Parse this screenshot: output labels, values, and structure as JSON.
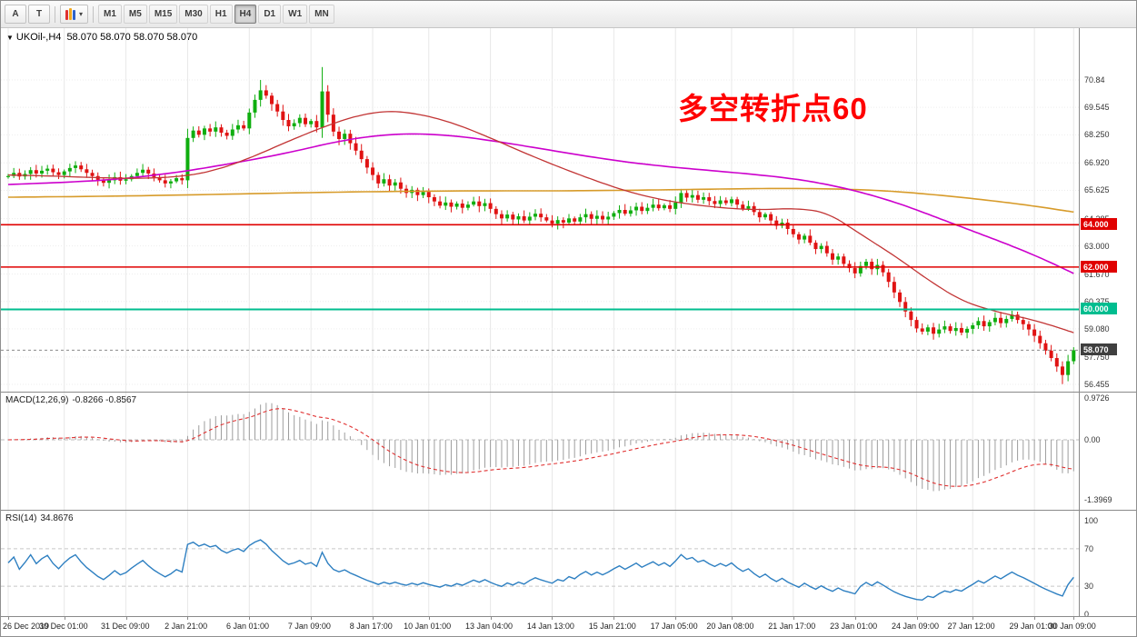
{
  "icons": {
    "collapse": "▼",
    "chevron_down": "▾"
  },
  "toolbar": {
    "tools": [
      {
        "label": "A"
      },
      {
        "label": "T"
      }
    ],
    "timeframes": [
      "M1",
      "M5",
      "M15",
      "M30",
      "H1",
      "H4",
      "D1",
      "W1",
      "MN"
    ],
    "active_timeframe": "H4"
  },
  "chart": {
    "title_symbol": "UKOil-,H4",
    "ohlc_display": "58.070 58.070 58.070 58.070",
    "annotation": {
      "text": "多空转折点60",
      "color": "#ff0000"
    },
    "levels": [
      {
        "label": "64.000",
        "price": 64.0,
        "color": "#e00000",
        "width": 1.6
      },
      {
        "label": "62.000",
        "price": 62.0,
        "color": "#e00000",
        "width": 1.6
      },
      {
        "label": "60.000",
        "price": 60.0,
        "color": "#00bd8f",
        "width": 2
      }
    ],
    "current_price": {
      "label": "58.070",
      "value": 58.07,
      "badge_color": "#3f3f3f"
    },
    "y_axis_labels": [
      {
        "text": "70.84",
        "p": 70.84
      },
      {
        "text": "69.545",
        "p": 69.545
      },
      {
        "text": "68.250",
        "p": 68.25
      },
      {
        "text": "66.920",
        "p": 66.92
      },
      {
        "text": "65.625",
        "p": 65.625
      },
      {
        "text": "64.285",
        "p": 64.285
      },
      {
        "text": "63.000",
        "p": 63.0
      },
      {
        "text": "61.670",
        "p": 61.67
      },
      {
        "text": "60.375",
        "p": 60.375
      },
      {
        "text": "59.080",
        "p": 59.08
      },
      {
        "text": "57.750",
        "p": 57.75
      },
      {
        "text": "56.455",
        "p": 56.455
      }
    ],
    "time_axis_labels": [
      {
        "text": "26 Dec 2019",
        "i": 0
      },
      {
        "text": "30 Dec 01:00",
        "i": 10
      },
      {
        "text": "31 Dec 09:00",
        "i": 21
      },
      {
        "text": "2 Jan 21:00",
        "i": 32
      },
      {
        "text": "6 Jan 01:00",
        "i": 43
      },
      {
        "text": "7 Jan 09:00",
        "i": 54
      },
      {
        "text": "8 Jan 17:00",
        "i": 65
      },
      {
        "text": "10 Jan 01:00",
        "i": 75
      },
      {
        "text": "13 Jan 04:00",
        "i": 86
      },
      {
        "text": "14 Jan 13:00",
        "i": 97
      },
      {
        "text": "15 Jan 21:00",
        "i": 108
      },
      {
        "text": "17 Jan 05:00",
        "i": 119
      },
      {
        "text": "20 Jan 08:00",
        "i": 129
      },
      {
        "text": "21 Jan 17:00",
        "i": 140
      },
      {
        "text": "23 Jan 01:00",
        "i": 151
      },
      {
        "text": "24 Jan 09:00",
        "i": 162
      },
      {
        "text": "27 Jan 12:00",
        "i": 172
      },
      {
        "text": "29 Jan 01:00",
        "i": 183
      },
      {
        "text": "30 Jan 09:00",
        "i": 190
      }
    ]
  },
  "indicators": {
    "macd": {
      "label": "MACD(12,26,9)",
      "values": "-0.8266 -0.8567",
      "axis": [
        {
          "text": "0.9726",
          "v": 0.9726
        },
        {
          "text": "0.00",
          "v": 0
        },
        {
          "text": "-1.3969",
          "v": -1.3969
        }
      ]
    },
    "rsi": {
      "label": "RSI(14)",
      "value": "34.8676",
      "axis": [
        {
          "text": "100",
          "v": 100
        },
        {
          "text": "70",
          "v": 70
        },
        {
          "text": "30",
          "v": 30
        },
        {
          "text": "0",
          "v": 0
        }
      ],
      "level_lines": [
        70,
        30
      ]
    }
  },
  "chart_data": {
    "type": "candlestick",
    "symbol": "UKOil-",
    "timeframe": "H4",
    "ylim": [
      56.1,
      73.3
    ],
    "macd_ylim": [
      -1.63,
      1.1
    ],
    "rsi_ylim": [
      0,
      100
    ],
    "closes": [
      66.3,
      66.45,
      66.28,
      66.4,
      66.58,
      66.42,
      66.55,
      66.65,
      66.48,
      66.35,
      66.52,
      66.68,
      66.8,
      66.62,
      66.45,
      66.3,
      66.12,
      65.98,
      66.1,
      66.25,
      66.08,
      66.15,
      66.3,
      66.45,
      66.6,
      66.42,
      66.25,
      66.1,
      65.95,
      66.05,
      66.2,
      66.1,
      68.1,
      68.45,
      68.25,
      68.55,
      68.4,
      68.6,
      68.35,
      68.2,
      68.5,
      68.7,
      68.55,
      69.3,
      69.9,
      70.35,
      70.1,
      69.7,
      69.35,
      68.95,
      68.65,
      68.8,
      69.05,
      68.75,
      68.9,
      68.6,
      70.3,
      69.2,
      68.4,
      68.05,
      68.3,
      67.85,
      67.5,
      67.1,
      66.7,
      66.35,
      65.95,
      66.15,
      65.85,
      66.0,
      65.7,
      65.5,
      65.65,
      65.4,
      65.55,
      65.3,
      65.1,
      64.9,
      65.05,
      64.85,
      65.0,
      64.8,
      64.95,
      65.1,
      64.88,
      65.02,
      64.75,
      64.5,
      64.3,
      64.48,
      64.25,
      64.4,
      64.2,
      64.38,
      64.52,
      64.35,
      64.2,
      64.05,
      64.22,
      64.1,
      64.3,
      64.15,
      64.35,
      64.5,
      64.28,
      64.42,
      64.25,
      64.38,
      64.55,
      64.7,
      64.52,
      64.68,
      64.85,
      64.65,
      64.8,
      64.95,
      64.78,
      64.92,
      64.75,
      65.05,
      65.5,
      65.28,
      65.4,
      65.18,
      65.3,
      65.12,
      64.98,
      65.15,
      65.02,
      65.2,
      64.95,
      64.75,
      64.88,
      64.6,
      64.35,
      64.5,
      64.2,
      63.95,
      64.1,
      63.8,
      63.55,
      63.3,
      63.48,
      63.15,
      62.85,
      63.0,
      62.65,
      62.35,
      62.5,
      62.15,
      61.95,
      61.7,
      62.05,
      62.25,
      61.9,
      62.1,
      61.75,
      61.3,
      60.8,
      60.35,
      59.9,
      59.5,
      59.1,
      58.95,
      59.15,
      58.85,
      59.05,
      59.2,
      58.98,
      59.12,
      58.9,
      59.08,
      59.25,
      59.45,
      59.2,
      59.4,
      59.6,
      59.35,
      59.55,
      59.75,
      59.5,
      59.3,
      59.05,
      58.75,
      58.4,
      58.05,
      57.7,
      57.3,
      56.9,
      57.55,
      58.07
    ],
    "ma_magenta": [
      [
        0,
        65.9
      ],
      [
        10,
        66.0
      ],
      [
        20,
        66.15
      ],
      [
        31,
        66.5
      ],
      [
        40,
        66.9
      ],
      [
        50,
        67.4
      ],
      [
        58,
        67.9
      ],
      [
        65,
        68.2
      ],
      [
        72,
        68.32
      ],
      [
        80,
        68.2
      ],
      [
        88,
        67.9
      ],
      [
        96,
        67.55
      ],
      [
        104,
        67.2
      ],
      [
        112,
        66.9
      ],
      [
        120,
        66.68
      ],
      [
        128,
        66.5
      ],
      [
        136,
        66.3
      ],
      [
        142,
        66.1
      ],
      [
        148,
        65.8
      ],
      [
        154,
        65.4
      ],
      [
        160,
        64.9
      ],
      [
        166,
        64.3
      ],
      [
        172,
        63.7
      ],
      [
        178,
        63.1
      ],
      [
        184,
        62.45
      ],
      [
        190,
        61.7
      ]
    ],
    "ma_orange": [
      [
        0,
        65.3
      ],
      [
        20,
        65.35
      ],
      [
        40,
        65.45
      ],
      [
        60,
        65.55
      ],
      [
        80,
        65.6
      ],
      [
        100,
        65.6
      ],
      [
        115,
        65.64
      ],
      [
        130,
        65.7
      ],
      [
        140,
        65.72
      ],
      [
        150,
        65.68
      ],
      [
        158,
        65.58
      ],
      [
        166,
        65.4
      ],
      [
        174,
        65.18
      ],
      [
        182,
        64.92
      ],
      [
        190,
        64.6
      ]
    ],
    "ma_red": [
      [
        0,
        66.35
      ],
      [
        8,
        66.3
      ],
      [
        16,
        66.22
      ],
      [
        24,
        66.18
      ],
      [
        32,
        66.3
      ],
      [
        38,
        66.65
      ],
      [
        44,
        67.25
      ],
      [
        50,
        67.95
      ],
      [
        56,
        68.6
      ],
      [
        62,
        69.15
      ],
      [
        68,
        69.4
      ],
      [
        74,
        69.2
      ],
      [
        80,
        68.75
      ],
      [
        86,
        68.1
      ],
      [
        92,
        67.4
      ],
      [
        98,
        66.75
      ],
      [
        104,
        66.15
      ],
      [
        110,
        65.6
      ],
      [
        116,
        65.2
      ],
      [
        122,
        64.95
      ],
      [
        128,
        64.78
      ],
      [
        134,
        64.7
      ],
      [
        140,
        64.78
      ],
      [
        146,
        64.6
      ],
      [
        152,
        63.55
      ],
      [
        158,
        62.55
      ],
      [
        164,
        61.4
      ],
      [
        170,
        60.4
      ],
      [
        176,
        59.9
      ],
      [
        182,
        59.55
      ],
      [
        186,
        59.25
      ],
      [
        190,
        58.9
      ]
    ],
    "up_color": "#0fae0f",
    "down_color": "#e01313"
  }
}
